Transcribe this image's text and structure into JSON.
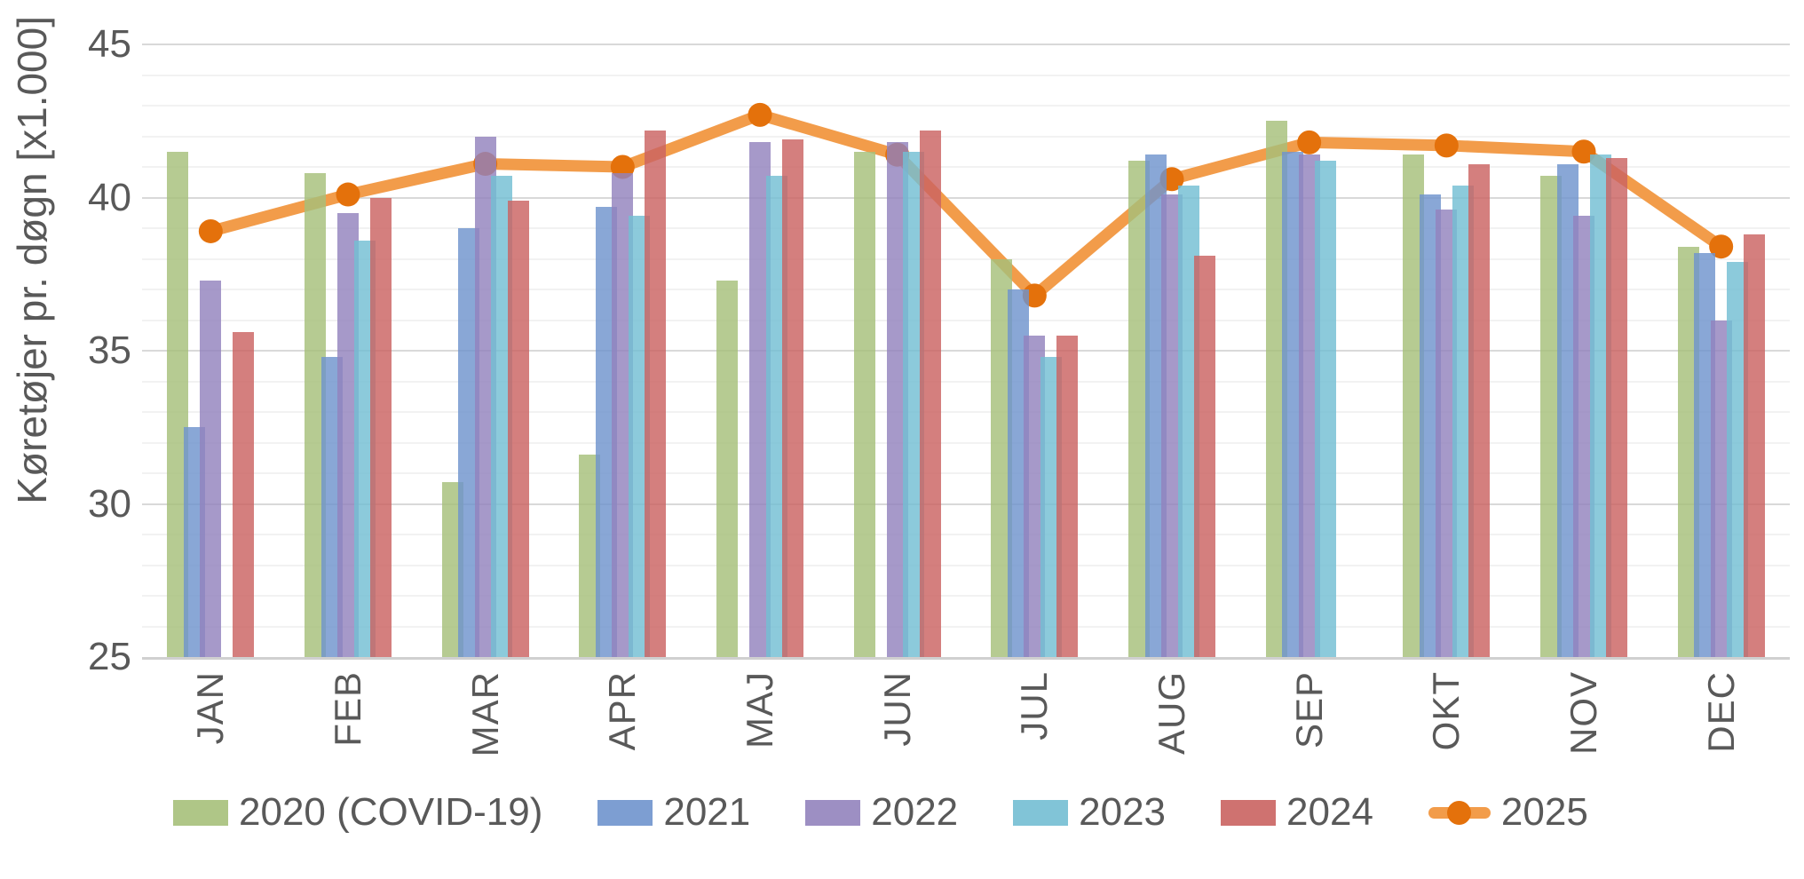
{
  "chart_data": {
    "type": "bar",
    "title": "",
    "ylabel": "Køretøjer pr. døgn [x1.000]",
    "xlabel": "",
    "ylim": [
      25,
      45
    ],
    "yticks": [
      25,
      30,
      35,
      40,
      45
    ],
    "minor_grid_step": 1,
    "grid": "on",
    "legend_position": "bottom",
    "categories": [
      "JAN",
      "FEB",
      "MAR",
      "APR",
      "MAJ",
      "JUN",
      "JUL",
      "AUG",
      "SEP",
      "OKT",
      "NOV",
      "DEC"
    ],
    "series": [
      {
        "name": "2020 (COVID-19)",
        "type": "bar",
        "color": "#a6c07a",
        "values": [
          41.5,
          40.8,
          30.7,
          31.6,
          37.3,
          41.5,
          38.0,
          41.2,
          42.5,
          41.4,
          40.7,
          38.4
        ]
      },
      {
        "name": "2021",
        "type": "bar",
        "color": "#6f94cd",
        "values": [
          32.5,
          34.8,
          39.0,
          39.7,
          null,
          null,
          37.0,
          41.4,
          41.5,
          40.1,
          41.1,
          38.2
        ]
      },
      {
        "name": "2022",
        "type": "bar",
        "color": "#9283bd",
        "values": [
          37.3,
          39.5,
          42.0,
          40.8,
          41.8,
          41.8,
          35.5,
          40.1,
          41.4,
          39.6,
          39.4,
          36.0
        ]
      },
      {
        "name": "2023",
        "type": "bar",
        "color": "#73bed3",
        "values": [
          null,
          38.6,
          40.7,
          39.4,
          40.7,
          41.5,
          34.8,
          40.4,
          41.2,
          40.4,
          41.4,
          37.9
        ]
      },
      {
        "name": "2024",
        "type": "bar",
        "color": "#ca6361",
        "values": [
          35.6,
          40.0,
          39.9,
          42.2,
          41.9,
          42.2,
          35.5,
          38.1,
          null,
          41.1,
          41.3,
          38.8
        ]
      },
      {
        "name": "2025",
        "type": "line",
        "color": "#f29c4a",
        "marker_color": "#e4710b",
        "values": [
          38.9,
          40.1,
          41.1,
          41.0,
          42.7,
          41.4,
          36.8,
          40.6,
          41.8,
          41.7,
          41.5,
          38.4
        ]
      }
    ],
    "colors": {
      "axis_text": "#595959",
      "major_gridline": "#d9d9d9",
      "minor_gridline": "#f2f2f2",
      "baseline": "#d0d0d0"
    }
  }
}
